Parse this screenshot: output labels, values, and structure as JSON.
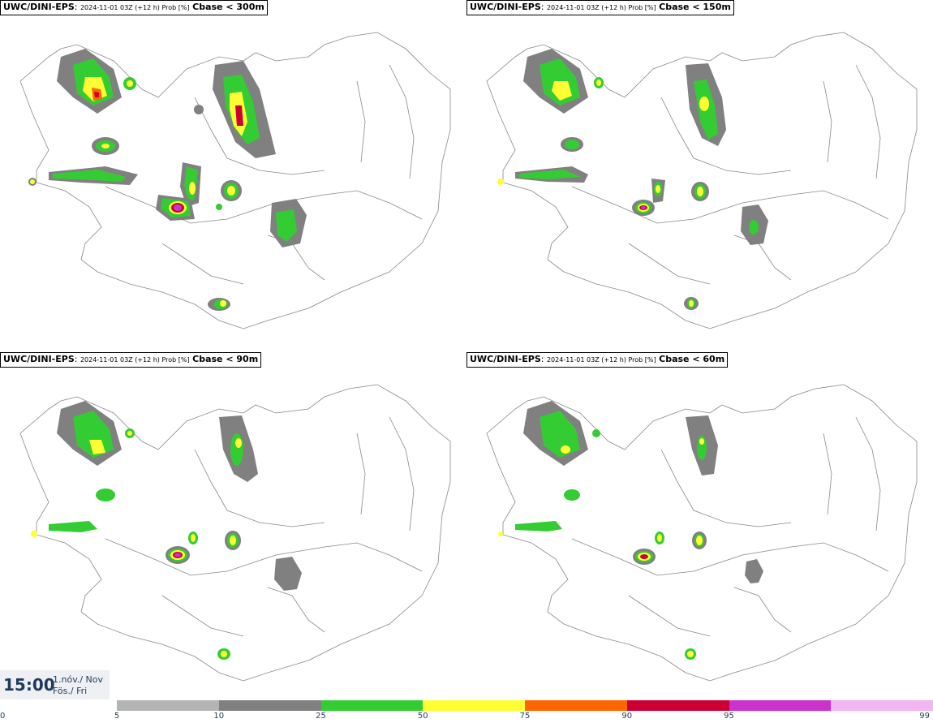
{
  "panels": [
    {
      "model": "UWC/DINI-EPS",
      "meta": "2024-11-01 03Z (+12 h) Prob [%]",
      "threshold": "Cbase < 300m"
    },
    {
      "model": "UWC/DINI-EPS",
      "meta": "2024-11-01 03Z (+12 h) Prob [%]",
      "threshold": "Cbase < 150m"
    },
    {
      "model": "UWC/DINI-EPS",
      "meta": "2024-11-01 03Z (+12 h) Prob [%]",
      "threshold": "Cbase < 90m"
    },
    {
      "model": "UWC/DINI-EPS",
      "meta": "2024-11-01 03Z (+12 h) Prob [%]",
      "threshold": "Cbase < 60m"
    }
  ],
  "valid_time": {
    "clock": "15:00",
    "date_line1": "1.nóv./ Nov",
    "date_line2": "Fös./ Fri"
  },
  "legend": {
    "ticks": [
      "0",
      "5",
      "10",
      "25",
      "50",
      "75",
      "90",
      "95",
      "99"
    ],
    "colors": [
      "#b4b4b4",
      "#808080",
      "#33cc33",
      "#ffff33",
      "#ff6600",
      "#cc0033",
      "#cc33cc",
      "#f2b6f2"
    ]
  }
}
